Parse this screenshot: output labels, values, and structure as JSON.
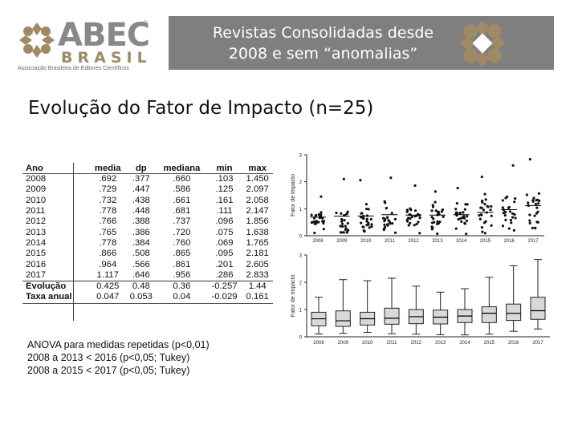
{
  "logo": {
    "wordmark": "ABEC",
    "country": "BRASIL",
    "registered": "®",
    "tagline": "Associação Brasileira de Editores Científicos",
    "color_primary": "#8a8a8a",
    "color_accent": "#a08a66"
  },
  "banner": {
    "line1": "Revistas Consolidadas desde",
    "line2": "2008 e sem “anomalias”",
    "background": "#7f7f7f"
  },
  "heading": "Evolução do Fator de Impacto (n=25)",
  "table": {
    "headers": [
      "Ano",
      "media",
      "dp",
      "mediana",
      "min",
      "max"
    ],
    "rows": [
      [
        "2008",
        ".692",
        ".377",
        ".660",
        ".103",
        "1.450"
      ],
      [
        "2009",
        ".729",
        ".447",
        ".586",
        ".125",
        "2.097"
      ],
      [
        "2010",
        ".732",
        ".438",
        ".661",
        ".161",
        "2.058"
      ],
      [
        "2011",
        ".778",
        ".448",
        ".681",
        ".111",
        "2.147"
      ],
      [
        "2012",
        ".766",
        ".388",
        ".737",
        ".096",
        "1.856"
      ],
      [
        "2013",
        ".765",
        ".386",
        ".720",
        ".075",
        "1.638"
      ],
      [
        "2014",
        ".778",
        ".384",
        ".760",
        ".069",
        "1.765"
      ],
      [
        "2015",
        ".866",
        ".508",
        ".865",
        ".095",
        "2.181"
      ],
      [
        "2016",
        ".964",
        ".566",
        ".861",
        ".201",
        "2.605"
      ],
      [
        "2017",
        "1.117",
        ".646",
        ".956",
        ".286",
        "2.833"
      ]
    ],
    "summary": [
      [
        "Evolução",
        "0.425",
        "0.48",
        "0.36",
        "-0.257",
        "1.44"
      ],
      [
        "Taxa anual",
        "0.047",
        "0.053",
        "0.04",
        "-0.029",
        "0.161"
      ]
    ]
  },
  "notes": [
    "ANOVA para medidas repetidas (p<0,01)",
    "2008 a 2013 < 2016 (p<0,05; Tukey)",
    "2008 a 2015 < 2017 (p<0,05; Tukey)"
  ],
  "chart_data": [
    {
      "type": "scatter",
      "ylabel": "Fator de Impacto",
      "xlabel": "",
      "categories": [
        "2008",
        "2009",
        "2010",
        "2011",
        "2012",
        "2013",
        "2014",
        "2015",
        "2016",
        "2017"
      ],
      "ylim": [
        0,
        3
      ],
      "yticks": [
        0,
        1,
        2,
        3
      ],
      "mean": [
        0.692,
        0.729,
        0.732,
        0.778,
        0.766,
        0.765,
        0.778,
        0.866,
        0.964,
        1.117
      ],
      "median": [
        0.66,
        0.586,
        0.661,
        0.681,
        0.737,
        0.72,
        0.76,
        0.865,
        0.861,
        0.956
      ],
      "min": [
        0.103,
        0.125,
        0.161,
        0.111,
        0.096,
        0.075,
        0.069,
        0.095,
        0.201,
        0.286
      ],
      "max": [
        1.45,
        2.097,
        2.058,
        2.147,
        1.856,
        1.638,
        1.765,
        2.181,
        2.605,
        2.833
      ],
      "sd": [
        0.377,
        0.447,
        0.438,
        0.448,
        0.388,
        0.386,
        0.384,
        0.508,
        0.566,
        0.646
      ],
      "n": 25,
      "marker_color": "#111111"
    },
    {
      "type": "box",
      "ylabel": "Fator de Impacto",
      "xlabel": "",
      "categories": [
        "2008",
        "2009",
        "2010",
        "2011",
        "2012",
        "2013",
        "2014",
        "2015",
        "2016",
        "2017"
      ],
      "ylim": [
        0,
        3
      ],
      "yticks": [
        0,
        1,
        2,
        3
      ],
      "min": [
        0.103,
        0.125,
        0.161,
        0.111,
        0.096,
        0.075,
        0.069,
        0.095,
        0.201,
        0.286
      ],
      "q1": [
        0.4,
        0.38,
        0.43,
        0.46,
        0.48,
        0.47,
        0.52,
        0.52,
        0.6,
        0.64
      ],
      "median": [
        0.66,
        0.586,
        0.661,
        0.681,
        0.737,
        0.72,
        0.76,
        0.865,
        0.861,
        0.956
      ],
      "q3": [
        0.9,
        0.95,
        0.9,
        1.05,
        1.0,
        0.98,
        1.0,
        1.1,
        1.2,
        1.45
      ],
      "max": [
        1.45,
        2.097,
        2.058,
        2.147,
        1.856,
        1.638,
        1.765,
        2.181,
        2.605,
        2.833
      ],
      "box_fill": "#d9d9d9"
    }
  ]
}
